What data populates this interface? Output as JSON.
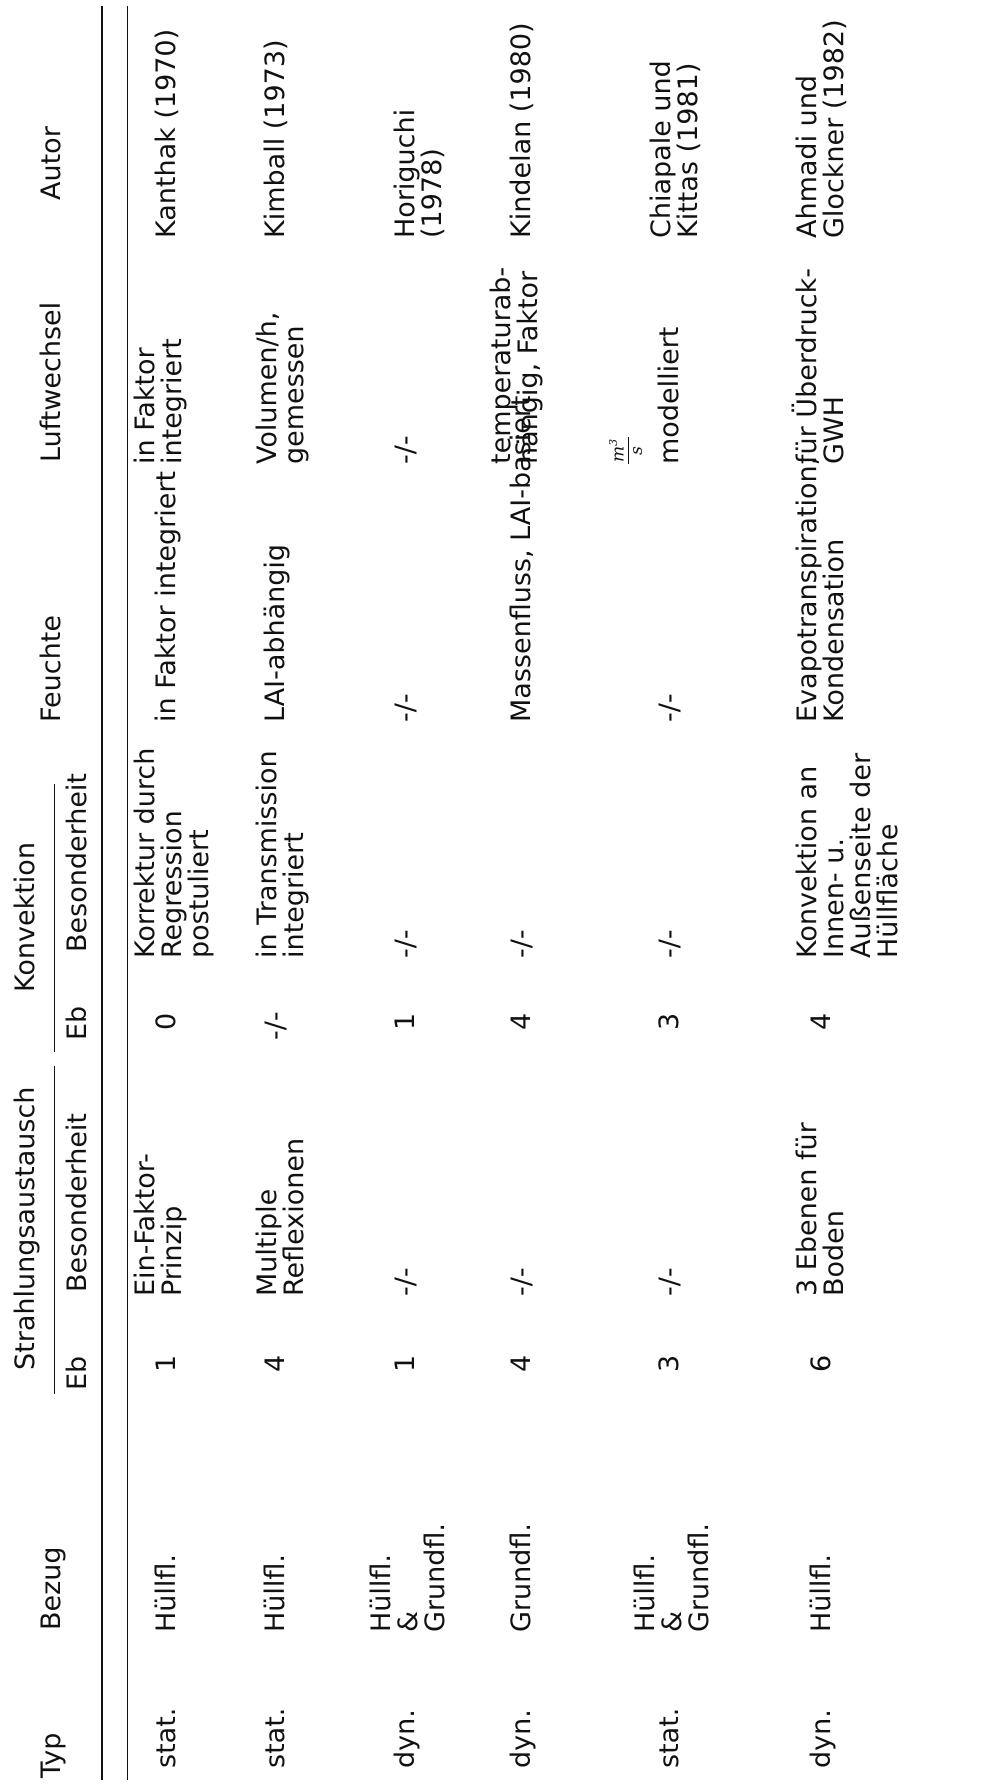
{
  "headers": {
    "typ": "Typ",
    "bezug": "Bezug",
    "strahlung": "Strahlungsaustausch",
    "strahlung_eb": "Eb",
    "strahlung_besonderheit": "Besonderheit",
    "konvektion": "Konvektion",
    "konvektion_eb": "Eb",
    "konvektion_besonderheit": "Besonderheit",
    "feuchte": "Feuchte",
    "luftwechsel": "Luftwechsel",
    "autor": "Autor"
  },
  "rows": [
    {
      "typ": "stat.",
      "bezug": "Hüllfl.",
      "s_eb": "1",
      "s_bes": "Ein-Faktor-\nPrinzip",
      "k_eb": "0",
      "k_bes": "Korrektur durch\nRegression\npostuliert",
      "feuchte": "in Faktor integriert",
      "luft": "in Faktor\nintegriert",
      "autor": "Kanthak (1970)"
    },
    {
      "typ": "stat.",
      "bezug": "Hüllfl.",
      "s_eb": "4",
      "s_bes": "Multiple\nReflexionen",
      "k_eb": "-/-",
      "k_bes": "in Transmission\nintegriert",
      "feuchte": "LAI-abhängig",
      "luft": "Volumen/h,\ngemessen",
      "autor": "Kimball (1973)"
    },
    {
      "typ": "dyn.",
      "bezug": "Hüllfl.\n&\nGrundfl.",
      "s_eb": "1",
      "s_bes": "-/-",
      "k_eb": "1",
      "k_bes": "-/-",
      "feuchte": "-/-",
      "luft": "-/-",
      "autor": "Horiguchi\n(1978)"
    },
    {
      "typ": "dyn.",
      "bezug": "Grundfl.",
      "s_eb": "4",
      "s_bes": "-/-",
      "k_eb": "4",
      "k_bes": "-/-",
      "feuchte": "Massenfluss, LAI-basiert",
      "luft": "temperaturab-\nhängig, Faktor",
      "luft_frac_num": "m3",
      "luft_frac_den": "s",
      "autor": "Kindelan (1980)"
    },
    {
      "typ": "stat.",
      "bezug": "Hüllfl.\n&\nGrundfl.",
      "s_eb": "3",
      "s_bes": "-/-",
      "k_eb": "3",
      "k_bes": "-/-",
      "feuchte": "-/-",
      "luft": "modelliert",
      "autor": "Chiapale und\nKittas (1981)"
    },
    {
      "typ": "dyn.",
      "bezug": "Hüllfl.",
      "s_eb": "6",
      "s_bes": "3 Ebenen für\nBoden",
      "k_eb": "4",
      "k_bes": "Konvektion an\nInnen- u.\nAußenseite der\nHüllfläche",
      "feuchte": "Evapotranspiration,\nKondensation",
      "luft": "für Überdruck-\nGWH",
      "autor": "Ahmadi und\nGlockner (1982)"
    }
  ]
}
